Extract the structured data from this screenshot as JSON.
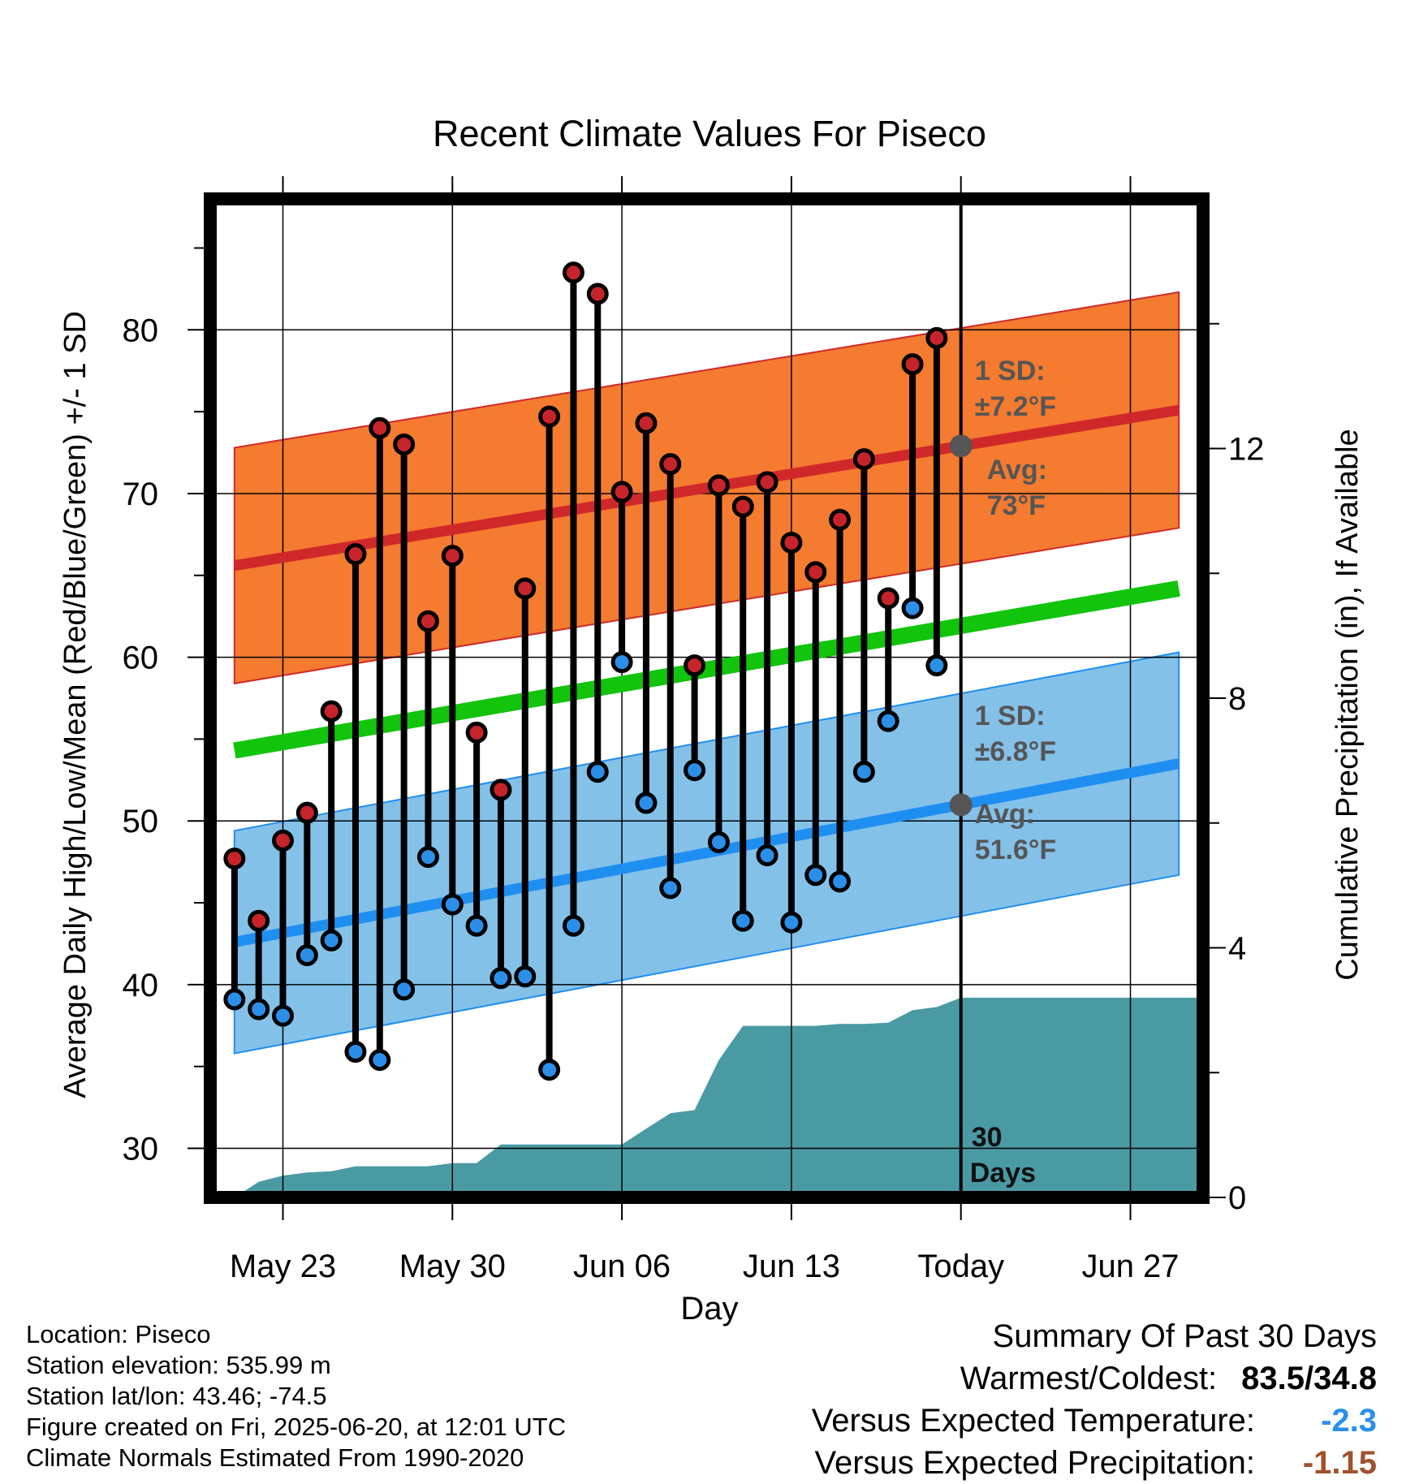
{
  "chart_data": {
    "type": "line",
    "title": "Recent Climate Values For Piseco",
    "xlabel": "Day",
    "ylabel": "Average Daily High/Low/Mean (Red/Blue/Green) +/- 1 SD",
    "y2label": "Cumulative Precipitation (in), If Available",
    "ylim": [
      27,
      88
    ],
    "y2lim": [
      0,
      16
    ],
    "y_ticks": [
      30,
      40,
      50,
      60,
      70,
      80
    ],
    "y2_ticks": [
      0,
      4,
      8,
      12
    ],
    "x_ticks": [
      {
        "day": 2,
        "label": "May 23"
      },
      {
        "day": 9,
        "label": "May 30"
      },
      {
        "day": 16,
        "label": "Jun 06"
      },
      {
        "day": 23,
        "label": "Jun 13"
      },
      {
        "day": 30,
        "label": "Today"
      },
      {
        "day": 37,
        "label": "Jun 27"
      }
    ],
    "xlim": [
      -1,
      40
    ],
    "grid": true,
    "colors": {
      "high_band": "#f47b2f",
      "high_line": "#d0282a",
      "low_band": "#84c1e9",
      "low_line": "#1f8ef1",
      "mean_line": "#12c40c",
      "precip": "#4a9aa4",
      "high_point": "#c6242a",
      "low_point": "#2b8fe8",
      "annotation": "#555555"
    },
    "normal_high": {
      "start": 65.6,
      "end": 75.1,
      "sd": 7.2
    },
    "normal_low": {
      "start": 42.6,
      "end": 53.5,
      "sd": 6.8
    },
    "normal_mean": {
      "start": 54.3,
      "end": 64.2
    },
    "days": [
      "May 21",
      "May 22",
      "May 23",
      "May 24",
      "May 25",
      "May 26",
      "May 27",
      "May 28",
      "May 29",
      "May 30",
      "May 31",
      "Jun 01",
      "Jun 02",
      "Jun 03",
      "Jun 04",
      "Jun 05",
      "Jun 06",
      "Jun 07",
      "Jun 08",
      "Jun 09",
      "Jun 10",
      "Jun 11",
      "Jun 12",
      "Jun 13",
      "Jun 14",
      "Jun 15",
      "Jun 16",
      "Jun 17",
      "Jun 18",
      "Jun 19"
    ],
    "highs": [
      47.7,
      43.9,
      48.8,
      50.5,
      56.7,
      66.3,
      74.0,
      73.0,
      62.2,
      66.2,
      55.4,
      51.9,
      64.2,
      74.7,
      83.5,
      82.2,
      70.1,
      74.3,
      71.8,
      59.5,
      70.5,
      69.2,
      70.7,
      67.0,
      65.2,
      68.4,
      72.1,
      63.6,
      77.9,
      79.5
    ],
    "lows": [
      39.1,
      38.5,
      38.1,
      41.8,
      42.7,
      35.9,
      35.4,
      39.7,
      47.8,
      44.9,
      43.6,
      40.4,
      40.5,
      34.8,
      43.6,
      53.0,
      59.7,
      51.1,
      45.9,
      53.1,
      48.7,
      43.9,
      47.9,
      43.8,
      46.7,
      46.3,
      53.0,
      56.1,
      63.0,
      59.5
    ],
    "precip_cumulative": [
      0.0,
      0.25,
      0.35,
      0.4,
      0.42,
      0.5,
      0.5,
      0.5,
      0.5,
      0.55,
      0.55,
      0.85,
      0.85,
      0.85,
      0.85,
      0.85,
      0.85,
      1.1,
      1.35,
      1.4,
      2.2,
      2.75,
      2.75,
      2.75,
      2.75,
      2.78,
      2.78,
      2.8,
      3.0,
      3.05,
      3.2,
      3.2,
      3.2,
      3.2,
      3.2,
      3.2,
      3.2,
      3.2,
      3.2,
      3.2,
      3.2
    ],
    "annotations": {
      "high_sd_title": "1 SD:",
      "high_sd_value": "±7.2°F",
      "high_avg_title": "Avg:",
      "high_avg_value": "73°F",
      "low_sd_title": "1 SD:",
      "low_sd_value": "±6.8°F",
      "low_avg_title": "Avg:",
      "low_avg_value": "51.6°F",
      "days_top": "30",
      "days_bottom": "Days"
    }
  },
  "location": {
    "location_line": "Location: Piseco",
    "elevation_line": "Station elevation: 535.99 m",
    "latlon_line": "Station lat/lon: 43.46; -74.5",
    "created_line": "Figure created on Fri, 2025-06-20, at 12:01 UTC",
    "normals_line": "Climate Normals Estimated From 1990-2020"
  },
  "summary": {
    "title": "Summary Of Past 30 Days",
    "warm_cold_label": "Warmest/Coldest:",
    "warm_cold_value": "83.5/34.8",
    "temp_label": "Versus Expected Temperature:",
    "temp_value": "-2.3",
    "temp_color": "#2b8fe8",
    "precip_label": "Versus Expected Precipitation:",
    "precip_value": "-1.15",
    "precip_color": "#a0522d"
  }
}
